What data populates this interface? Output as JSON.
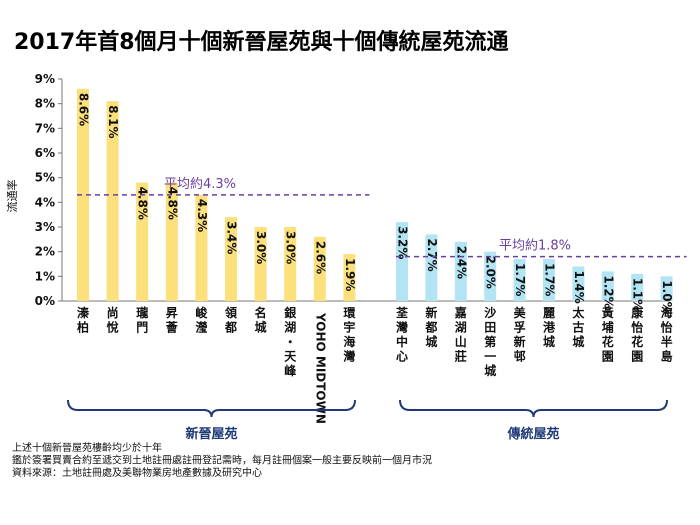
{
  "chart_data": {
    "type": "bar",
    "title": "2017年首8個月十個新晉屋苑與十個傳統屋苑流通",
    "ylabel": "流通率",
    "ylim": [
      0,
      9
    ],
    "y_ticks": [
      "0%",
      "1%",
      "2%",
      "3%",
      "4%",
      "5%",
      "6%",
      "7%",
      "8%",
      "9%"
    ],
    "grid": false,
    "groups": [
      {
        "name": "新晉屋苑",
        "color": "#fbe07c",
        "average": 4.3,
        "average_label": "平均約4.3%",
        "categories": [
          "溱柏",
          "尚悅",
          "瓏門",
          "昇薈",
          "峻瀅",
          "領都",
          "名城",
          "銀湖・天峰",
          "YOHO MIDTOWN",
          "環宇海灣"
        ],
        "values": [
          8.6,
          8.1,
          4.8,
          4.8,
          4.3,
          3.4,
          3.0,
          3.0,
          2.6,
          1.9
        ],
        "value_labels": [
          "8.6%",
          "8.1%",
          "4.8%",
          "4.8%",
          "4.3%",
          "3.4%",
          "3.0%",
          "3.0%",
          "2.6%",
          "1.9%"
        ]
      },
      {
        "name": "傳統屋苑",
        "color": "#b3e4f3",
        "average": 1.8,
        "average_label": "平均約1.8%",
        "categories": [
          "荃灣中心",
          "新都城",
          "嘉湖山莊",
          "沙田第一城",
          "美孚新邨",
          "麗港城",
          "太古城",
          "黃埔花園",
          "康怡花園",
          "海怡半島"
        ],
        "values": [
          3.2,
          2.7,
          2.4,
          2.0,
          1.7,
          1.7,
          1.4,
          1.2,
          1.1,
          1.0
        ],
        "value_labels": [
          "3.2%",
          "2.7%",
          "2.4%",
          "2.0%",
          "1.7%",
          "1.7%",
          "1.4%",
          "1.2%",
          "1.1%",
          "1.0%"
        ]
      }
    ],
    "notes": [
      "上述十個新晉屋苑樓齡均少於十年",
      "鑑於簽署買賣合約至遞交到土地註冊處註冊登記需時，每月註冊個案一般主要反映前一個月市況",
      "資料來源：土地註冊處及美聯物業房地產數據及研究中心"
    ]
  }
}
